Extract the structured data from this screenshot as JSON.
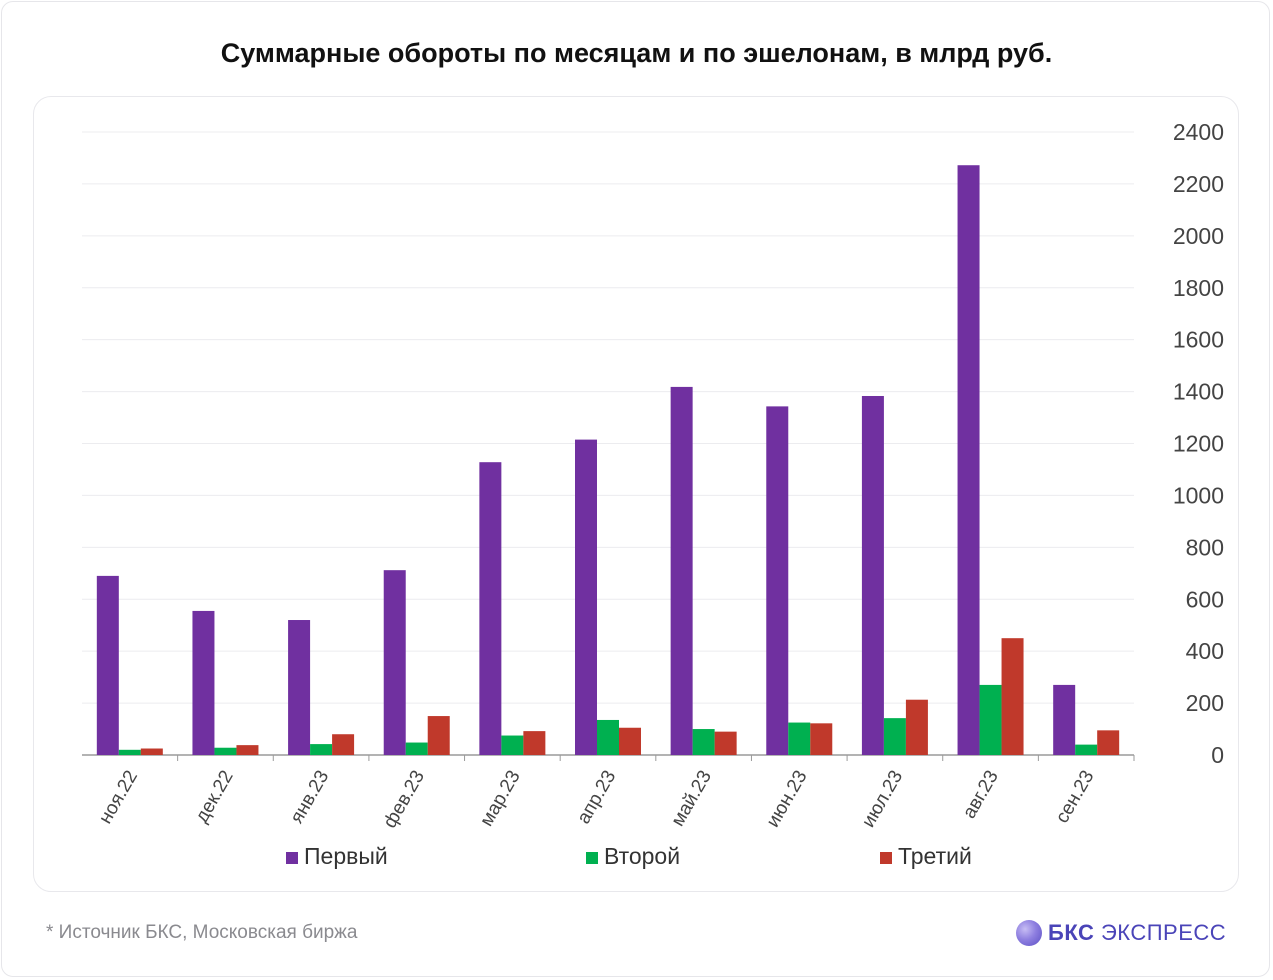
{
  "title": "Суммарные обороты по месяцам и по эшелонам, в млрд руб.",
  "footnote": "*  Источник БКС, Московская биржа",
  "brand": {
    "strong": "БКС",
    "light": " ЭКСПРЕСС"
  },
  "chart_data": {
    "type": "bar",
    "categories": [
      "ноя.22",
      "дек.22",
      "янв.23",
      "фев.23",
      "мар.23",
      "апр.23",
      "май.23",
      "июн.23",
      "июл.23",
      "авг.23",
      "сен.23"
    ],
    "series": [
      {
        "name": "Первый",
        "color": "#7030a0",
        "values": [
          690,
          555,
          520,
          712,
          1128,
          1215,
          1418,
          1343,
          1383,
          2272,
          270
        ]
      },
      {
        "name": "Второй",
        "color": "#00b050",
        "values": [
          20,
          28,
          42,
          48,
          75,
          135,
          100,
          125,
          142,
          270,
          40
        ]
      },
      {
        "name": "Третий",
        "color": "#c0392b",
        "values": [
          25,
          38,
          80,
          150,
          92,
          105,
          90,
          122,
          213,
          450,
          95
        ]
      }
    ],
    "ylim": [
      0,
      2400
    ],
    "yticks": [
      0,
      200,
      400,
      600,
      800,
      1000,
      1200,
      1400,
      1600,
      1800,
      2000,
      2200,
      2400
    ],
    "y_axis_side": "right",
    "grid": true,
    "legend": "bottom",
    "xlabel": "",
    "ylabel": ""
  }
}
